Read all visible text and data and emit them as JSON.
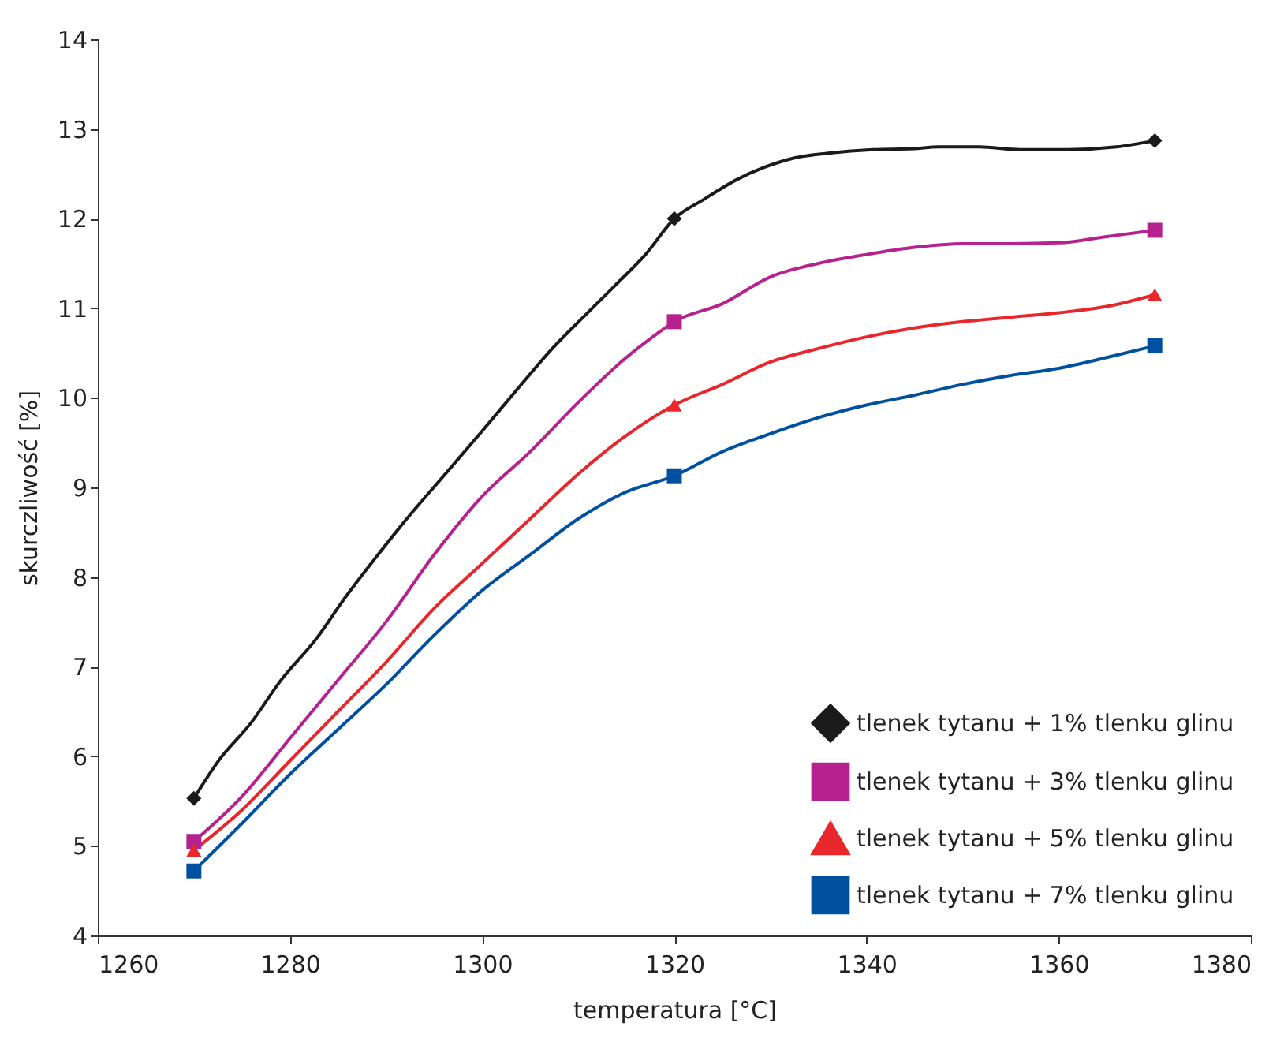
{
  "chart_data": {
    "type": "line",
    "xlabel": "temperatura [°C]",
    "ylabel": "skurczliwość [%]",
    "xlim": [
      1260,
      1380
    ],
    "xticks": [
      1260,
      1280,
      1300,
      1320,
      1340,
      1360,
      1380
    ],
    "ylim": [
      4,
      14
    ],
    "yticks": [
      4,
      5,
      6,
      7,
      8,
      9,
      10,
      11,
      12,
      13,
      14
    ],
    "grid": false,
    "legend": "bottom right",
    "line_style": "solid",
    "series": [
      {
        "name": "tlenek tytanu + 1% tlenku glinu",
        "color": "#1a1a1a",
        "x": [
          1270,
          1272.5,
          1276,
          1279,
          1282.8,
          1285.6,
          1288.8,
          1292,
          1296,
          1300,
          1304,
          1307.3,
          1310.7,
          1313.8,
          1317,
          1320,
          1323,
          1326.4,
          1329.3,
          1332.6,
          1336,
          1340.7,
          1344.8,
          1347.5,
          1351.7,
          1356,
          1361,
          1366,
          1370
        ],
        "values": [
          5.53,
          5.94,
          6.38,
          6.84,
          7.32,
          7.75,
          8.2,
          8.63,
          9.13,
          9.63,
          10.14,
          10.55,
          10.92,
          11.25,
          11.6,
          12.0,
          12.21,
          12.43,
          12.57,
          12.68,
          12.73,
          12.77,
          12.78,
          12.8,
          12.8,
          12.77,
          12.77,
          12.8,
          12.87
        ]
      },
      {
        "name": "tlenek tytanu + 3% tlenku glinu",
        "color": "#b5218f",
        "x": [
          1270,
          1275,
          1280,
          1285,
          1290,
          1295,
          1300,
          1305,
          1310,
          1315,
          1318,
          1320,
          1325,
          1330,
          1335,
          1340,
          1345,
          1350,
          1355,
          1360,
          1365,
          1370
        ],
        "values": [
          5.05,
          5.55,
          6.2,
          6.85,
          7.5,
          8.25,
          8.9,
          9.4,
          9.95,
          10.45,
          10.7,
          10.85,
          11.05,
          11.35,
          11.5,
          11.6,
          11.68,
          11.72,
          11.72,
          11.73,
          11.8,
          11.87
        ]
      },
      {
        "name": "tlenek tytanu + 5% tlenku glinu",
        "color": "#e8262c",
        "x": [
          1270,
          1275,
          1280,
          1285,
          1290,
          1295,
          1300,
          1305,
          1310,
          1315,
          1320,
          1325,
          1330,
          1335,
          1340,
          1345,
          1350,
          1355,
          1360,
          1365,
          1370
        ],
        "values": [
          4.95,
          5.4,
          5.95,
          6.5,
          7.05,
          7.65,
          8.15,
          8.65,
          9.15,
          9.58,
          9.92,
          10.15,
          10.4,
          10.55,
          10.68,
          10.78,
          10.85,
          10.9,
          10.95,
          11.02,
          11.15
        ]
      },
      {
        "name": "tlenek tytanu + 7% tlenku glinu",
        "color": "#0050a0",
        "x": [
          1270,
          1275,
          1280,
          1285,
          1290,
          1295,
          1300,
          1305,
          1310,
          1315,
          1320,
          1325,
          1330,
          1335,
          1340,
          1345,
          1350,
          1355,
          1360,
          1365,
          1370
        ],
        "values": [
          4.72,
          5.25,
          5.8,
          6.3,
          6.8,
          7.35,
          7.85,
          8.25,
          8.65,
          8.95,
          9.13,
          9.4,
          9.6,
          9.78,
          9.92,
          10.03,
          10.15,
          10.25,
          10.33,
          10.45,
          10.58
        ]
      },
      {
        "type": "scatter",
        "marker": "diamond",
        "color": "#1a1a1a",
        "x": [
          1270,
          1320,
          1370
        ],
        "values": [
          5.53,
          12.0,
          12.87
        ]
      },
      {
        "type": "scatter",
        "marker": "square",
        "color": "#b5218f",
        "x": [
          1270,
          1320,
          1370
        ],
        "values": [
          5.05,
          10.85,
          11.87
        ]
      },
      {
        "type": "scatter",
        "marker": "triangle",
        "color": "#e8262c",
        "x": [
          1270,
          1320,
          1370
        ],
        "values": [
          4.95,
          9.92,
          11.15
        ]
      },
      {
        "type": "scatter",
        "marker": "square",
        "color": "#0050a0",
        "x": [
          1270,
          1320,
          1370
        ],
        "values": [
          4.72,
          9.13,
          10.58
        ]
      }
    ]
  }
}
